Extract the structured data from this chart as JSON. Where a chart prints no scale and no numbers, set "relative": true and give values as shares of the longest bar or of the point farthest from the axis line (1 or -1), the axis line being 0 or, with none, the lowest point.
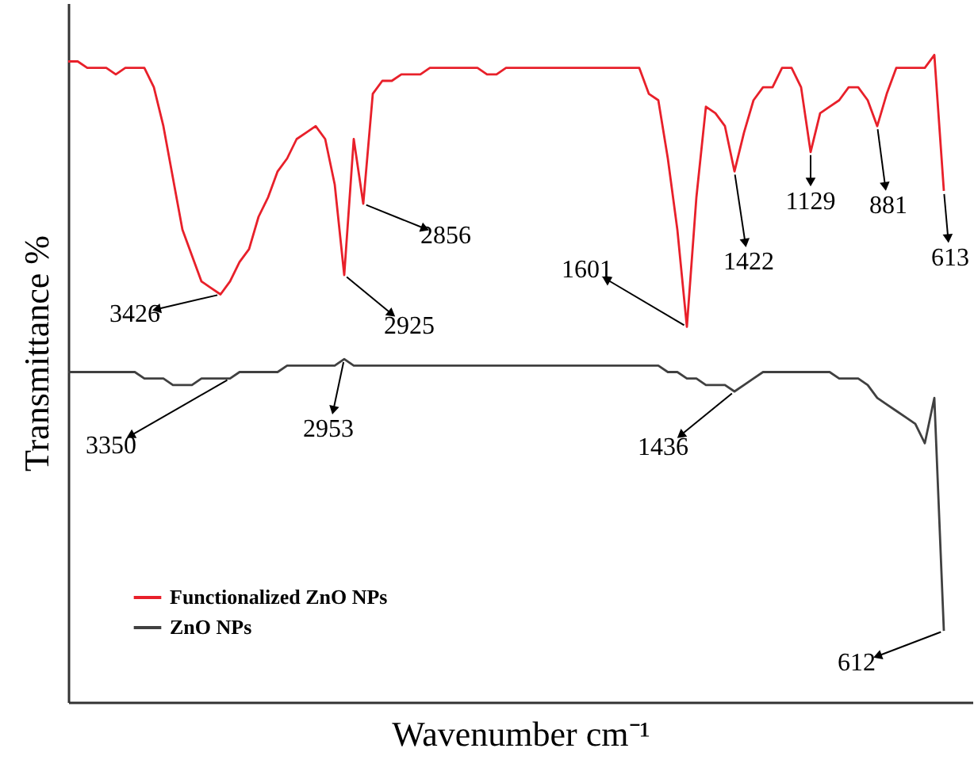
{
  "chart_data": {
    "type": "line",
    "relative": true,
    "xlabel": "Wavenumber cm⁻¹",
    "ylabel": "Transmittance %",
    "tick_labels": false,
    "grid": false,
    "legend": "bottom left",
    "categories": [
      null,
      null,
      null,
      null,
      null,
      null,
      null,
      null,
      null,
      null,
      null,
      null,
      null,
      null,
      null,
      null,
      null,
      null,
      null,
      null,
      null,
      null,
      null,
      null,
      null,
      null,
      null,
      null,
      null,
      null,
      null,
      null,
      null,
      null,
      null,
      null,
      null,
      null,
      null,
      null,
      null,
      null,
      null,
      null,
      null,
      null,
      null,
      null,
      null,
      null,
      null,
      null,
      null,
      null,
      null,
      null,
      null,
      null,
      null,
      null,
      null,
      null,
      null,
      null,
      null,
      null,
      null,
      null,
      null,
      null,
      null,
      null,
      null,
      null,
      null,
      null,
      null,
      null,
      null,
      null,
      null,
      null,
      null,
      null,
      null,
      null,
      null,
      null,
      null,
      null,
      null,
      null,
      null,
      null,
      null,
      null
    ],
    "series": [
      {
        "name": "Functionalized ZnO NPs",
        "color": "#e8202a",
        "values": [
          0.99,
          0.99,
          0.98,
          0.98,
          0.98,
          0.97,
          0.98,
          0.98,
          0.98,
          0.95,
          0.89,
          0.81,
          0.73,
          0.69,
          0.65,
          0.64,
          0.63,
          0.65,
          0.68,
          0.7,
          0.75,
          0.78,
          0.82,
          0.84,
          0.87,
          0.88,
          0.89,
          0.87,
          0.8,
          0.66,
          0.87,
          0.77,
          0.94,
          0.96,
          0.96,
          0.97,
          0.97,
          0.97,
          0.98,
          0.98,
          0.98,
          0.98,
          0.98,
          0.98,
          0.97,
          0.97,
          0.98,
          0.98,
          0.98,
          0.98,
          0.98,
          0.98,
          0.98,
          0.98,
          0.98,
          0.98,
          0.98,
          0.98,
          0.98,
          0.98,
          0.98,
          0.94,
          0.93,
          0.84,
          0.73,
          0.58,
          0.78,
          0.92,
          0.91,
          0.89,
          0.82,
          0.88,
          0.93,
          0.95,
          0.95,
          0.98,
          0.98,
          0.95,
          0.85,
          0.91,
          0.92,
          0.93,
          0.95,
          0.95,
          0.93,
          0.89,
          0.94,
          0.98,
          0.98,
          0.98,
          0.98,
          1.0,
          0.79,
          null,
          null,
          null
        ]
      },
      {
        "name": "ZnO NPs",
        "color": "#404040",
        "values": [
          0.51,
          0.51,
          0.51,
          0.51,
          0.51,
          0.51,
          0.51,
          0.51,
          0.5,
          0.5,
          0.5,
          0.49,
          0.49,
          0.49,
          0.5,
          0.5,
          0.5,
          0.5,
          0.51,
          0.51,
          0.51,
          0.51,
          0.51,
          0.52,
          0.52,
          0.52,
          0.52,
          0.52,
          0.52,
          0.53,
          0.52,
          0.52,
          0.52,
          0.52,
          0.52,
          0.52,
          0.52,
          0.52,
          0.52,
          0.52,
          0.52,
          0.52,
          0.52,
          0.52,
          0.52,
          0.52,
          0.52,
          0.52,
          0.52,
          0.52,
          0.52,
          0.52,
          0.52,
          0.52,
          0.52,
          0.52,
          0.52,
          0.52,
          0.52,
          0.52,
          0.52,
          0.52,
          0.52,
          0.51,
          0.51,
          0.5,
          0.5,
          0.49,
          0.49,
          0.49,
          0.48,
          0.49,
          0.5,
          0.51,
          0.51,
          0.51,
          0.51,
          0.51,
          0.51,
          0.51,
          0.51,
          0.5,
          0.5,
          0.5,
          0.49,
          0.47,
          0.46,
          0.45,
          0.44,
          0.43,
          0.4,
          0.47,
          0.11,
          null,
          null,
          null
        ]
      }
    ],
    "annotations": [
      "3426",
      "2925",
      "2856",
      "1601",
      "1422",
      "1129",
      "881",
      "613",
      "3350",
      "2953",
      "1436",
      "612"
    ]
  }
}
